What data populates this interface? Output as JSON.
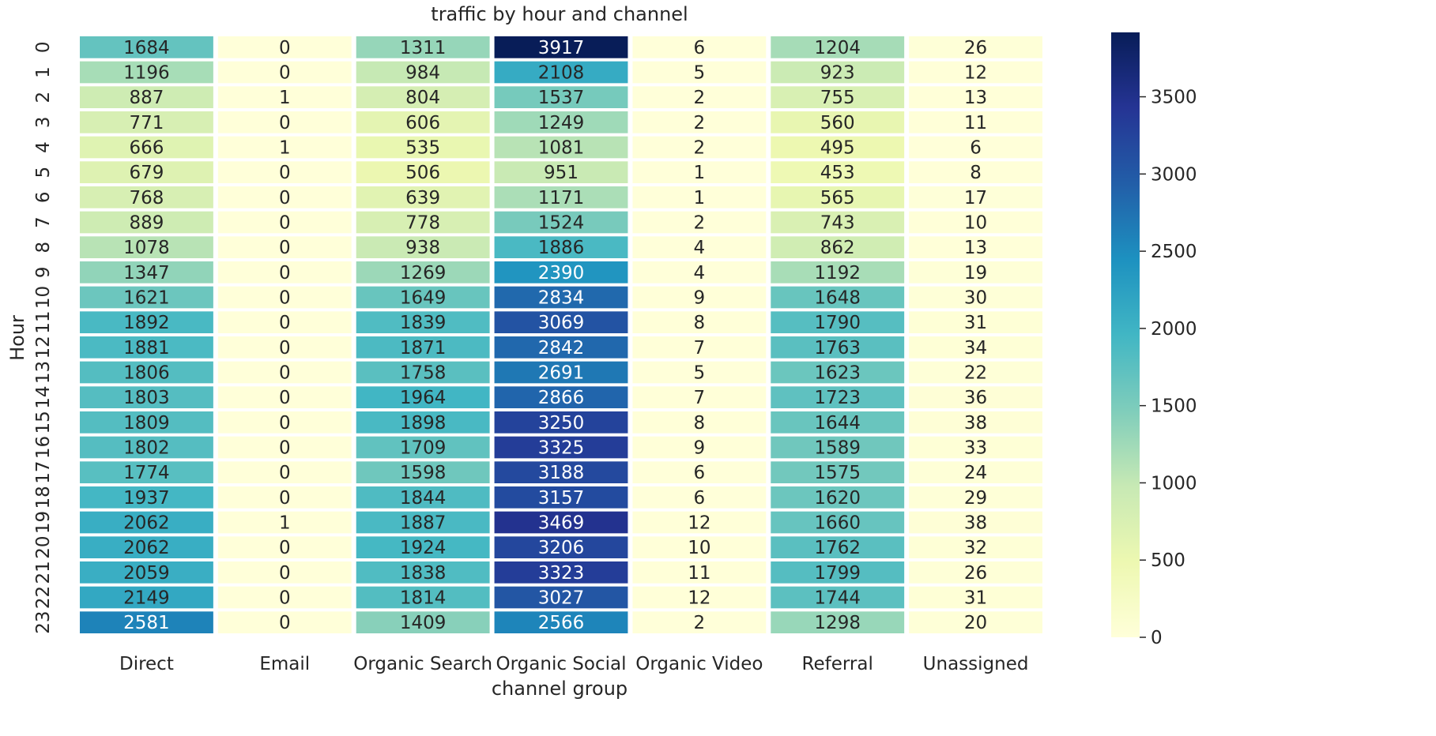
{
  "chart_data": {
    "type": "heatmap",
    "title": "traffic by hour and channel",
    "xlabel": "channel group",
    "ylabel": "Hour",
    "columns": [
      "Direct",
      "Email",
      "Organic Search",
      "Organic Social",
      "Organic Video",
      "Referral",
      "Unassigned"
    ],
    "rows": [
      "0",
      "1",
      "2",
      "3",
      "4",
      "5",
      "6",
      "7",
      "8",
      "9",
      "10",
      "11",
      "12",
      "13",
      "14",
      "15",
      "16",
      "17",
      "18",
      "19",
      "20",
      "21",
      "22",
      "23"
    ],
    "values": [
      [
        1684,
        0,
        1311,
        3917,
        6,
        1204,
        26
      ],
      [
        1196,
        0,
        984,
        2108,
        5,
        923,
        12
      ],
      [
        887,
        1,
        804,
        1537,
        2,
        755,
        13
      ],
      [
        771,
        0,
        606,
        1249,
        2,
        560,
        11
      ],
      [
        666,
        1,
        535,
        1081,
        2,
        495,
        6
      ],
      [
        679,
        0,
        506,
        951,
        1,
        453,
        8
      ],
      [
        768,
        0,
        639,
        1171,
        1,
        565,
        17
      ],
      [
        889,
        0,
        778,
        1524,
        2,
        743,
        10
      ],
      [
        1078,
        0,
        938,
        1886,
        4,
        862,
        13
      ],
      [
        1347,
        0,
        1269,
        2390,
        4,
        1192,
        19
      ],
      [
        1621,
        0,
        1649,
        2834,
        9,
        1648,
        30
      ],
      [
        1892,
        0,
        1839,
        3069,
        8,
        1790,
        31
      ],
      [
        1881,
        0,
        1871,
        2842,
        7,
        1763,
        34
      ],
      [
        1806,
        0,
        1758,
        2691,
        5,
        1623,
        22
      ],
      [
        1803,
        0,
        1964,
        2866,
        7,
        1723,
        36
      ],
      [
        1809,
        0,
        1898,
        3250,
        8,
        1644,
        38
      ],
      [
        1802,
        0,
        1709,
        3325,
        9,
        1589,
        33
      ],
      [
        1774,
        0,
        1598,
        3188,
        6,
        1575,
        24
      ],
      [
        1937,
        0,
        1844,
        3157,
        6,
        1620,
        29
      ],
      [
        2062,
        1,
        1887,
        3469,
        12,
        1660,
        38
      ],
      [
        2062,
        0,
        1924,
        3206,
        10,
        1762,
        32
      ],
      [
        2059,
        0,
        1838,
        3323,
        11,
        1799,
        26
      ],
      [
        2149,
        0,
        1814,
        3027,
        12,
        1744,
        31
      ],
      [
        2581,
        0,
        1409,
        2566,
        2,
        1298,
        20
      ]
    ],
    "colormap": "YlGnBu",
    "vmin": 0,
    "vmax": 3917,
    "colorbar_ticks": [
      0,
      500,
      1000,
      1500,
      2000,
      2500,
      3000,
      3500
    ],
    "colors": {
      "scale": [
        "#ffffd9",
        "#edf8b1",
        "#c7e9b4",
        "#7fcdbb",
        "#41b6c4",
        "#1d91c0",
        "#225ea8",
        "#253494",
        "#081d58"
      ],
      "cell_gap": "#ffffff",
      "text_dark": "#262626",
      "text_light": "#ffffff",
      "axis_text": "#262626"
    },
    "annotations": true,
    "grid": false
  }
}
